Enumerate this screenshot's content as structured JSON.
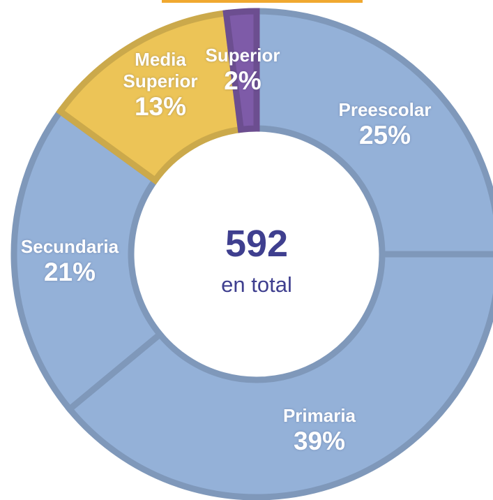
{
  "chart_data": {
    "type": "donut",
    "categories": [
      "Preescolar",
      "Primaria",
      "Secundaria",
      "Media Superior",
      "Superior"
    ],
    "values": [
      25,
      39,
      21,
      13,
      2
    ],
    "value_labels": [
      "25%",
      "39%",
      "21%",
      "13%",
      "2%"
    ],
    "colors": [
      "#94b1d8",
      "#94b1d8",
      "#94b1d8",
      "#ecc457",
      "#7e5ba8"
    ],
    "total": 592,
    "total_label": "en total"
  }
}
